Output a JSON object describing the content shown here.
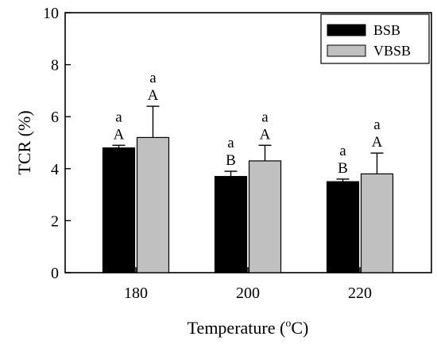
{
  "chart_data": {
    "type": "bar",
    "title": "",
    "xlabel": "Temperature (",
    "xlabel_sup": "o",
    "xlabel_unit": "C)",
    "ylabel": "TCR (%)",
    "categories": [
      "180",
      "200",
      "220"
    ],
    "ylim": [
      0,
      10
    ],
    "yticks": [
      "0",
      "2",
      "4",
      "6",
      "8",
      "10"
    ],
    "legend_position": "top-right",
    "grid": false,
    "series": [
      {
        "name": "BSB",
        "color": "#000000",
        "values": [
          4.8,
          3.7,
          3.5
        ],
        "errors": [
          0.1,
          0.2,
          0.1
        ],
        "letters_upper": [
          "A",
          "B",
          "B"
        ],
        "letters_lower": [
          "a",
          "a",
          "a"
        ]
      },
      {
        "name": "VBSB",
        "color": "#c0c0c0",
        "values": [
          5.2,
          4.3,
          3.8
        ],
        "errors": [
          1.2,
          0.6,
          0.8
        ],
        "letters_upper": [
          "A",
          "A",
          "A"
        ],
        "letters_lower": [
          "a",
          "a",
          "a"
        ]
      }
    ]
  }
}
